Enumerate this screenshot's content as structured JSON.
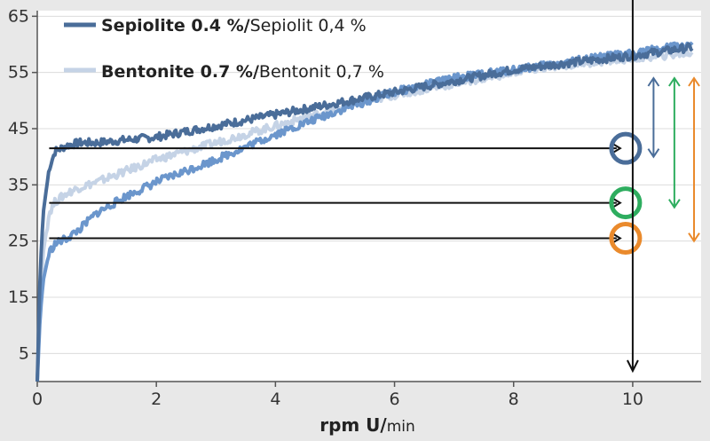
{
  "chart_data": {
    "type": "line",
    "xlabel_main": "rpm  U/",
    "xlabel_unit": "min",
    "ylabel": "",
    "xlim": [
      0,
      11
    ],
    "ylim": [
      0,
      66
    ],
    "x_ticks": [
      0,
      2,
      4,
      6,
      8,
      10
    ],
    "x_tick_labels": [
      "0",
      "2",
      "4",
      "6",
      "8",
      "10"
    ],
    "y_ticks": [
      5,
      15,
      25,
      35,
      45,
      55,
      65
    ],
    "y_tick_labels": [
      "5",
      "15",
      "25",
      "35",
      "45",
      "55",
      "65"
    ],
    "grid": "horizontal",
    "legend_position": "top-left",
    "legend": [
      {
        "bold": "Sepiolite 0.4 %/",
        "normal": "Sepiolit 0,4 %",
        "color": "#4a6d99"
      },
      {
        "bold": "Bentonite 0.7 %/",
        "normal": "Bentonit 0,7 %",
        "color": "#c5d3e6"
      }
    ],
    "series": [
      {
        "name": "Sepiolite 0.4 %/Sepiolit 0,4 %",
        "color": "#4a6d99",
        "x": [
          0,
          0.05,
          0.1,
          0.2,
          0.3,
          0.5,
          0.7,
          1,
          1.5,
          2,
          3,
          4,
          5,
          6,
          7,
          8,
          9,
          10,
          11
        ],
        "y": [
          0,
          20,
          30,
          38,
          41,
          42,
          42.5,
          42.5,
          43,
          43.5,
          45.5,
          47.5,
          49.5,
          51.5,
          53.5,
          55.5,
          56.8,
          58,
          59.5
        ]
      },
      {
        "name": "Bentonite 0.7 %/Bentonit 0,7 %",
        "color": "#c5d3e6",
        "x": [
          0,
          0.05,
          0.1,
          0.2,
          0.3,
          0.5,
          0.7,
          1,
          1.5,
          2,
          3,
          4,
          5,
          6,
          7,
          8,
          9,
          10,
          11
        ],
        "y": [
          0,
          15,
          23,
          30,
          32,
          33.5,
          34.5,
          35.5,
          37.5,
          39.5,
          42.5,
          45.5,
          48.5,
          51,
          53,
          55,
          56.5,
          57.5,
          58.5
        ]
      },
      {
        "name": "",
        "color": "#6b96cc",
        "x": [
          0,
          0.05,
          0.1,
          0.2,
          0.3,
          0.5,
          0.7,
          1,
          1.5,
          2,
          3,
          4,
          5,
          6,
          7,
          8,
          9,
          10,
          11
        ],
        "y": [
          0,
          12,
          18,
          23,
          24.5,
          25.5,
          27,
          30,
          33,
          35.5,
          39.5,
          44,
          48,
          51.5,
          54,
          55.5,
          57,
          58.5,
          60
        ]
      }
    ],
    "reference_lines": [
      {
        "y": 41.5,
        "x_start": 0.2,
        "x_end": 9.85,
        "circle_color": "#4a6d99"
      },
      {
        "y": 31.8,
        "x_start": 0.2,
        "x_end": 9.85,
        "circle_color": "#2ead5f"
      },
      {
        "y": 25.5,
        "x_start": 0.2,
        "x_end": 9.85,
        "circle_color": "#ea8a2c"
      }
    ],
    "vertical_line": {
      "x": 10
    },
    "range_arrows": [
      {
        "x": 10.35,
        "y_top": 54,
        "y_bottom": 40,
        "color": "#4a6d99"
      },
      {
        "x": 10.7,
        "y_top": 54,
        "y_bottom": 31,
        "color": "#2ead5f"
      },
      {
        "x": 11.05,
        "y_top": 54,
        "y_bottom": 25,
        "color": "#ea8a2c"
      }
    ]
  }
}
